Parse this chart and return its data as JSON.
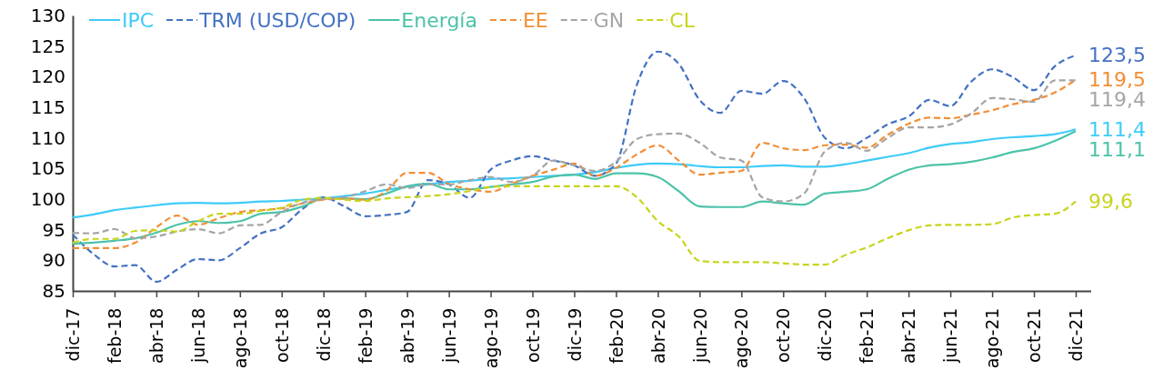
{
  "chart_data": {
    "type": "line",
    "categories": [
      "dic-17",
      null,
      "feb-18",
      null,
      "abr-18",
      null,
      "jun-18",
      null,
      "ago-18",
      null,
      "oct-18",
      null,
      "dic-18",
      null,
      "feb-19",
      null,
      "abr-19",
      null,
      "jun-19",
      null,
      "ago-19",
      null,
      "oct-19",
      null,
      "dic-19",
      null,
      "feb-20",
      null,
      "abr-20",
      null,
      "jun-20",
      null,
      "ago-20",
      null,
      "oct-20",
      null,
      "dic-20",
      null,
      "feb-21",
      null,
      "abr-21",
      null,
      "jun-21",
      null,
      "ago-21",
      null,
      "oct-21",
      null,
      "dic-21"
    ],
    "ylim": [
      85,
      130
    ],
    "yticks": [
      85,
      90,
      95,
      100,
      105,
      110,
      115,
      120,
      125,
      130
    ],
    "grid": false,
    "legend": "top left",
    "marker": "none",
    "series": [
      {
        "name": "IPC",
        "color": "#3fcbf8",
        "line_style": "solid",
        "values": [
          97.0,
          97.5,
          98.2,
          98.6,
          99.0,
          99.3,
          99.4,
          99.3,
          99.4,
          99.6,
          99.7,
          99.9,
          100.1,
          100.5,
          100.9,
          101.5,
          102.0,
          102.4,
          102.8,
          103.0,
          103.3,
          103.4,
          103.6,
          103.8,
          104.0,
          104.4,
          105.1,
          105.6,
          105.8,
          105.7,
          105.4,
          105.2,
          105.2,
          105.4,
          105.5,
          105.3,
          105.3,
          105.7,
          106.3,
          106.9,
          107.5,
          108.4,
          109.0,
          109.3,
          109.8,
          110.1,
          110.3,
          110.6,
          111.4
        ],
        "value_labels": [
          null,
          null,
          null,
          null,
          null,
          null,
          null,
          null,
          null,
          null,
          null,
          null,
          null,
          null,
          null,
          null,
          null,
          null,
          null,
          null,
          null,
          null,
          null,
          null,
          null,
          null,
          null,
          null,
          null,
          null,
          null,
          null,
          null,
          null,
          null,
          null,
          null,
          null,
          null,
          null,
          null,
          null,
          null,
          null,
          null,
          null,
          null,
          null,
          "111,4"
        ]
      },
      {
        "name": "TRM (USD/COP)",
        "color": "#4472c4",
        "line_style": "dashed",
        "values": [
          94.2,
          91.0,
          89.0,
          89.2,
          86.5,
          88.5,
          90.2,
          90.0,
          92.0,
          94.4,
          95.4,
          98.4,
          100.3,
          98.8,
          97.2,
          97.4,
          97.9,
          103.1,
          102.4,
          100.2,
          104.8,
          106.3,
          107.0,
          106.3,
          105.5,
          103.8,
          105.8,
          118.7,
          124.1,
          122.1,
          116.2,
          114.1,
          117.7,
          117.2,
          119.3,
          116.5,
          110.0,
          108.3,
          110.0,
          112.2,
          113.5,
          116.2,
          115.2,
          119.2,
          121.2,
          119.9,
          117.8,
          121.7,
          123.5
        ],
        "value_labels": [
          null,
          null,
          null,
          null,
          null,
          null,
          null,
          null,
          null,
          null,
          null,
          null,
          null,
          null,
          null,
          null,
          null,
          null,
          null,
          null,
          null,
          null,
          null,
          null,
          null,
          null,
          null,
          null,
          null,
          null,
          null,
          null,
          null,
          null,
          null,
          null,
          null,
          null,
          null,
          null,
          null,
          null,
          null,
          null,
          null,
          null,
          null,
          null,
          "123,5"
        ]
      },
      {
        "name": "Energía",
        "color": "#4cc3a9",
        "line_style": "solid",
        "values": [
          92.7,
          92.9,
          93.2,
          93.6,
          94.5,
          95.8,
          96.4,
          96.1,
          96.4,
          97.6,
          97.9,
          98.8,
          100.1,
          100.1,
          100.0,
          100.9,
          102.1,
          102.5,
          101.6,
          101.6,
          102.0,
          102.4,
          102.8,
          103.7,
          104.0,
          103.3,
          104.2,
          104.2,
          103.6,
          101.3,
          98.8,
          98.7,
          98.7,
          99.6,
          99.3,
          99.1,
          100.9,
          101.2,
          101.6,
          103.3,
          104.8,
          105.5,
          105.7,
          106.1,
          106.8,
          107.7,
          108.3,
          109.5,
          111.1
        ],
        "value_labels": [
          null,
          null,
          null,
          null,
          null,
          null,
          null,
          null,
          null,
          null,
          null,
          null,
          null,
          null,
          null,
          null,
          null,
          null,
          null,
          null,
          null,
          null,
          null,
          null,
          null,
          null,
          null,
          null,
          null,
          null,
          null,
          null,
          null,
          null,
          null,
          null,
          null,
          null,
          null,
          null,
          null,
          null,
          null,
          null,
          null,
          null,
          null,
          null,
          "111,1"
        ]
      },
      {
        "name": "EE",
        "color": "#f28e36",
        "line_style": "dashed",
        "values": [
          92.0,
          92.0,
          92.0,
          92.9,
          95.4,
          97.3,
          95.8,
          96.9,
          97.9,
          98.2,
          98.5,
          99.3,
          99.9,
          100.1,
          99.9,
          101.3,
          104.3,
          104.3,
          102.5,
          101.6,
          101.2,
          102.5,
          103.8,
          104.8,
          105.8,
          103.8,
          105.1,
          107.3,
          108.8,
          106.3,
          104.0,
          104.3,
          104.6,
          109.2,
          108.3,
          108.0,
          108.8,
          108.9,
          108.4,
          110.5,
          112.3,
          113.3,
          113.2,
          113.8,
          114.5,
          115.5,
          116.2,
          117.4,
          119.5
        ],
        "value_labels": [
          null,
          null,
          null,
          null,
          null,
          null,
          null,
          null,
          null,
          null,
          null,
          null,
          null,
          null,
          null,
          null,
          null,
          null,
          null,
          null,
          null,
          null,
          null,
          null,
          null,
          null,
          null,
          null,
          null,
          null,
          null,
          null,
          null,
          null,
          null,
          null,
          null,
          null,
          null,
          null,
          null,
          null,
          null,
          null,
          null,
          null,
          null,
          null,
          "119,5"
        ]
      },
      {
        "name": "GN",
        "color": "#a5a5a5",
        "line_style": "dashed",
        "values": [
          94.5,
          94.4,
          95.1,
          93.6,
          93.9,
          94.7,
          95.1,
          94.4,
          95.7,
          95.8,
          97.9,
          99.4,
          100.0,
          100.3,
          101.3,
          102.4,
          101.8,
          102.4,
          102.4,
          103.1,
          103.6,
          102.8,
          103.8,
          106.3,
          105.5,
          104.6,
          106.1,
          109.8,
          110.6,
          110.7,
          109.2,
          106.8,
          106.3,
          100.3,
          99.6,
          100.9,
          107.8,
          109.2,
          107.9,
          110.0,
          111.7,
          111.7,
          112.2,
          114.0,
          116.5,
          116.3,
          115.9,
          119.4,
          119.4
        ],
        "value_labels": [
          null,
          null,
          null,
          null,
          null,
          null,
          null,
          null,
          null,
          null,
          null,
          null,
          null,
          null,
          null,
          null,
          null,
          null,
          null,
          null,
          null,
          null,
          null,
          null,
          null,
          null,
          null,
          null,
          null,
          null,
          null,
          null,
          null,
          null,
          null,
          null,
          null,
          null,
          null,
          null,
          null,
          null,
          null,
          null,
          null,
          null,
          null,
          null,
          "119,4"
        ]
      },
      {
        "name": "CL",
        "color": "#c8d41f",
        "line_style": "dashed",
        "values": [
          92.9,
          93.5,
          93.5,
          94.8,
          94.9,
          94.7,
          96.4,
          97.6,
          97.6,
          98.1,
          98.6,
          99.9,
          100.2,
          99.9,
          99.7,
          100.1,
          100.3,
          100.5,
          100.8,
          101.3,
          102.0,
          102.1,
          102.1,
          102.1,
          102.1,
          102.1,
          102.1,
          100.3,
          96.4,
          93.9,
          89.9,
          89.7,
          89.7,
          89.7,
          89.5,
          89.3,
          89.3,
          90.9,
          92.1,
          93.6,
          94.9,
          95.7,
          95.8,
          95.8,
          95.9,
          97.0,
          97.4,
          97.6,
          99.6
        ],
        "value_labels": [
          null,
          null,
          null,
          null,
          null,
          null,
          null,
          null,
          null,
          null,
          null,
          null,
          null,
          null,
          null,
          null,
          null,
          null,
          null,
          null,
          null,
          null,
          null,
          null,
          null,
          null,
          null,
          null,
          null,
          null,
          null,
          null,
          null,
          null,
          null,
          null,
          null,
          null,
          null,
          null,
          null,
          null,
          null,
          null,
          null,
          null,
          null,
          null,
          "99,6"
        ]
      }
    ]
  }
}
